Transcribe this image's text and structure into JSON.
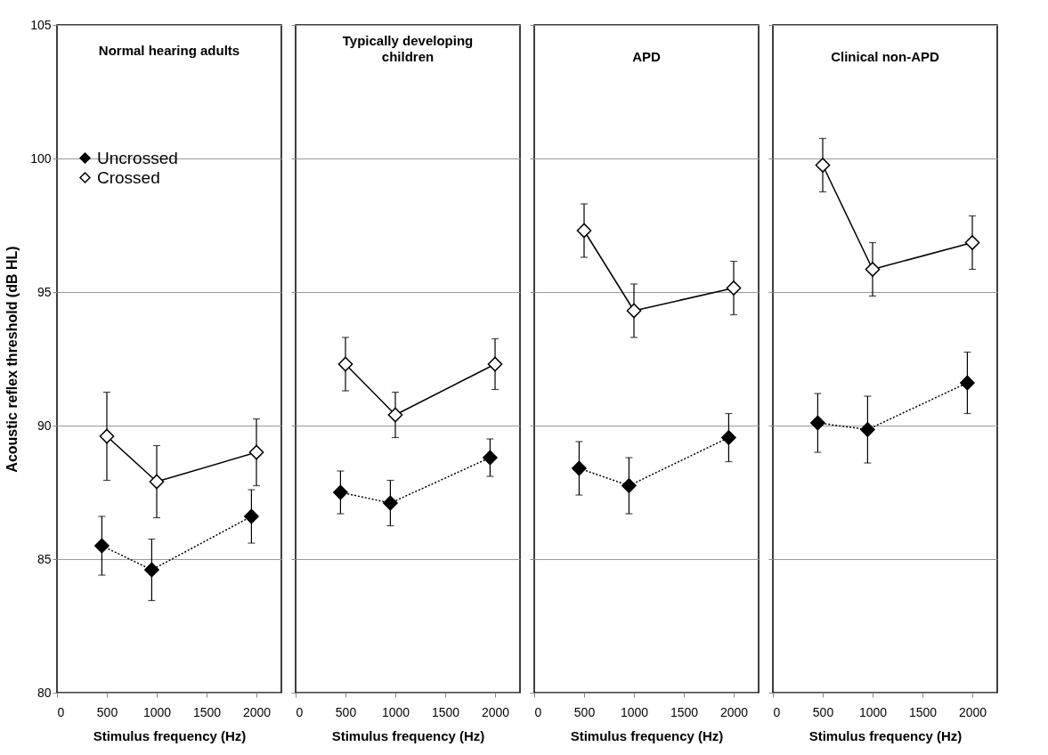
{
  "chart_data": [
    {
      "type": "line",
      "title": "Normal hearing adults",
      "xlabel": "Stimulus frequency (Hz)",
      "ylabel": "Acoustic reflex threshold (dB HL)",
      "xlim": [
        0,
        2250
      ],
      "xticks": [
        0,
        500,
        1000,
        1500,
        2000
      ],
      "ylim": [
        80,
        105
      ],
      "yticks": [
        80,
        85,
        90,
        95,
        100,
        105
      ],
      "grid": "y",
      "legend": "top left",
      "marker": "diamond",
      "series": [
        {
          "name": "Uncrossed",
          "color": "#000000",
          "line_style": "dotted",
          "x": [
            450,
            950,
            1950
          ],
          "values": [
            85.5,
            84.6,
            86.6
          ],
          "errors": [
            1.1,
            1.15,
            1.0
          ]
        },
        {
          "name": "Crossed",
          "color": "#000000",
          "line_style": "solid",
          "x": [
            500,
            1000,
            2000
          ],
          "values": [
            89.6,
            87.9,
            89.0
          ],
          "errors": [
            1.65,
            1.35,
            1.25
          ]
        }
      ]
    },
    {
      "type": "line",
      "title": "Typically developing children",
      "xlabel": "Stimulus frequency (Hz)",
      "xlim": [
        0,
        2250
      ],
      "xticks": [
        0,
        500,
        1000,
        1500,
        2000
      ],
      "ylim": [
        80,
        105
      ],
      "yticks": [
        80,
        85,
        90,
        95,
        100,
        105
      ],
      "grid": "y",
      "tick_labels": "x",
      "marker": "diamond",
      "series": [
        {
          "color": "#000000",
          "line_style": "dotted",
          "x": [
            450,
            950,
            1950
          ],
          "values": [
            87.5,
            87.1,
            88.8
          ],
          "errors": [
            0.8,
            0.85,
            0.7
          ]
        },
        {
          "color": "#000000",
          "line_style": "solid",
          "x": [
            500,
            1000,
            2000
          ],
          "values": [
            92.3,
            90.4,
            92.3
          ],
          "errors": [
            1.0,
            0.85,
            0.95
          ]
        }
      ]
    },
    {
      "type": "line",
      "title": "APD",
      "xlabel": "Stimulus frequency (Hz)",
      "xlim": [
        0,
        2250
      ],
      "xticks": [
        0,
        500,
        1000,
        1500,
        2000
      ],
      "ylim": [
        80,
        105
      ],
      "yticks": [
        80,
        85,
        90,
        95,
        100,
        105
      ],
      "grid": "y",
      "tick_labels": "x",
      "marker": "diamond",
      "series": [
        {
          "color": "#000000",
          "line_style": "dotted",
          "x": [
            450,
            950,
            1950
          ],
          "values": [
            88.4,
            87.75,
            89.55
          ],
          "errors": [
            1.0,
            1.05,
            0.9
          ]
        },
        {
          "color": "#000000",
          "line_style": "solid",
          "x": [
            500,
            1000,
            2000
          ],
          "values": [
            97.3,
            94.3,
            95.15
          ],
          "errors": [
            1.0,
            1.0,
            1.0
          ]
        }
      ]
    },
    {
      "type": "line",
      "title": "Clinical non-APD",
      "xlabel": "Stimulus frequency (Hz)",
      "xlim": [
        0,
        2250
      ],
      "xticks": [
        0,
        500,
        1000,
        1500,
        2000
      ],
      "ylim": [
        80,
        105
      ],
      "yticks": [
        80,
        85,
        90,
        95,
        100,
        105
      ],
      "grid": "y",
      "tick_labels": "x",
      "marker": "diamond",
      "series": [
        {
          "color": "#000000",
          "line_style": "dotted",
          "x": [
            450,
            950,
            1950
          ],
          "values": [
            90.1,
            89.85,
            91.6
          ],
          "errors": [
            1.1,
            1.25,
            1.15
          ]
        },
        {
          "color": "#000000",
          "line_style": "solid",
          "x": [
            500,
            1000,
            2000
          ],
          "values": [
            99.75,
            95.85,
            96.85
          ],
          "errors": [
            1.0,
            1.0,
            1.0
          ]
        }
      ]
    }
  ]
}
